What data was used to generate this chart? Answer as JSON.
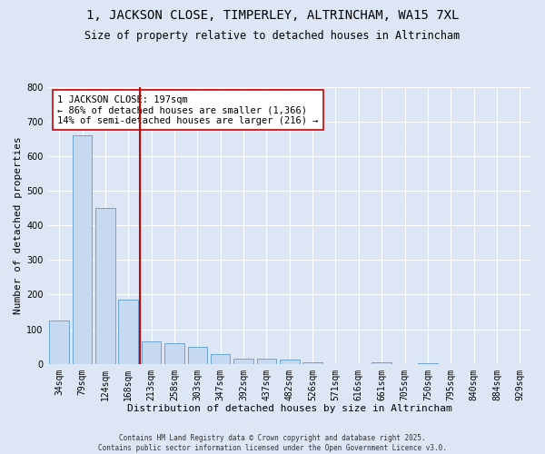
{
  "title_line1": "1, JACKSON CLOSE, TIMPERLEY, ALTRINCHAM, WA15 7XL",
  "title_line2": "Size of property relative to detached houses in Altrincham",
  "xlabel": "Distribution of detached houses by size in Altrincham",
  "ylabel": "Number of detached properties",
  "categories": [
    "34sqm",
    "79sqm",
    "124sqm",
    "168sqm",
    "213sqm",
    "258sqm",
    "303sqm",
    "347sqm",
    "392sqm",
    "437sqm",
    "482sqm",
    "526sqm",
    "571sqm",
    "616sqm",
    "661sqm",
    "705sqm",
    "750sqm",
    "795sqm",
    "840sqm",
    "884sqm",
    "929sqm"
  ],
  "values": [
    125,
    660,
    450,
    185,
    65,
    60,
    50,
    28,
    15,
    15,
    12,
    5,
    0,
    0,
    5,
    0,
    3,
    0,
    0,
    0,
    0
  ],
  "bar_color": "#c6d9f0",
  "bar_edge_color": "#5b9bd5",
  "vline_color": "#cc0000",
  "annotation_text": "1 JACKSON CLOSE: 197sqm\n← 86% of detached houses are smaller (1,366)\n14% of semi-detached houses are larger (216) →",
  "annotation_box_color": "white",
  "annotation_box_edge": "#cc0000",
  "ylim": [
    0,
    800
  ],
  "yticks": [
    0,
    100,
    200,
    300,
    400,
    500,
    600,
    700,
    800
  ],
  "background_color": "#dce6f5",
  "plot_background": "#dce6f5",
  "footer_line1": "Contains HM Land Registry data © Crown copyright and database right 2025.",
  "footer_line2": "Contains public sector information licensed under the Open Government Licence v3.0.",
  "title_fontsize": 10,
  "subtitle_fontsize": 8.5,
  "tick_fontsize": 7,
  "label_fontsize": 8,
  "annotation_fontsize": 7.5,
  "vline_bar_index": 3
}
